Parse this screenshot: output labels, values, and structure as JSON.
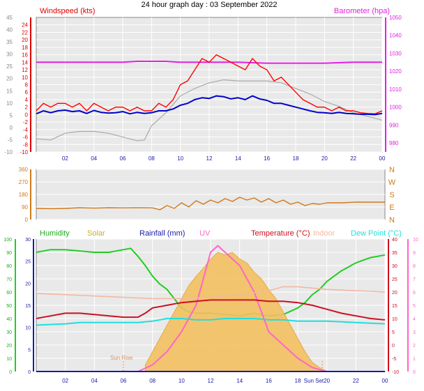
{
  "page_title": "24 hour graph day : 03 September 2022",
  "colors": {
    "wind": "#ff0000",
    "gust_avg": "#0000cc",
    "temp_trace": "#aaaaaa",
    "baro": "#e020e0",
    "dir": "#d07818",
    "humidity": "#22cc22",
    "solar": "#f2c060",
    "rain": "#1a1aaa",
    "uv": "#ff66cc",
    "temperature": "#cc1020",
    "indoor": "#f4b8a0",
    "dew": "#22dddd",
    "plot_bg": "#e9e9e9"
  },
  "chart_data": [
    {
      "type": "line",
      "id": "wind",
      "title": "Windspeed (kts)",
      "right_title": "Barometer (hpa)",
      "xticks": [
        "02",
        "04",
        "06",
        "08",
        "10",
        "12",
        "14",
        "16",
        "18",
        "20",
        "22",
        "00"
      ],
      "ylim": [
        -10,
        26
      ],
      "yticks_left": [
        "-10",
        "-8",
        "-6",
        "-4",
        "-2",
        "0",
        "2",
        "4",
        "6",
        "8",
        "10",
        "12",
        "14",
        "16",
        "18",
        "20",
        "22",
        "24"
      ],
      "yticks_outer": [
        "-10",
        "-5",
        "0",
        "5",
        "10",
        "15",
        "20",
        "25",
        "30",
        "35",
        "40",
        "45"
      ],
      "y2lim": [
        975,
        1050
      ],
      "yticks_right": [
        "980",
        "990",
        "1000",
        "1010",
        "1020",
        "1030",
        "1040",
        "1050"
      ],
      "grid": true,
      "series": [
        {
          "key": "baro",
          "x": [
            0,
            6,
            7,
            8,
            9,
            10,
            12,
            14,
            16,
            18,
            20,
            22,
            24
          ],
          "y": [
            1025,
            1025,
            1025.5,
            1025.5,
            1025.5,
            1025,
            1025,
            1025,
            1024.5,
            1024.5,
            1024.5,
            1025,
            1025
          ]
        },
        {
          "key": "temp_trace",
          "x": [
            0,
            1,
            2,
            3,
            4,
            5,
            6,
            7,
            7.5,
            8,
            9,
            10,
            11,
            12,
            13,
            14,
            15,
            16,
            17,
            18,
            19,
            20,
            21,
            22,
            23,
            24
          ],
          "y": [
            -6.5,
            -6.8,
            -5,
            -4.5,
            -4.5,
            -5,
            -6,
            -7,
            -6.8,
            -3,
            0.5,
            5,
            7,
            8.5,
            9.3,
            9.0,
            9.0,
            9.0,
            8.5,
            7.0,
            5.5,
            3.5,
            2.2,
            0.5,
            -0.5,
            -1.5
          ]
        },
        {
          "key": "wind",
          "x": [
            0,
            0.5,
            1,
            1.5,
            2,
            2.5,
            3,
            3.5,
            4,
            4.5,
            5,
            5.5,
            6,
            6.5,
            7,
            7.5,
            8,
            8.5,
            9,
            9.5,
            10,
            10.5,
            11,
            11.5,
            12,
            12.5,
            13,
            13.5,
            14,
            14.5,
            15,
            15.5,
            16,
            16.5,
            17,
            17.5,
            18,
            18.5,
            19,
            19.5,
            20,
            20.5,
            21,
            21.5,
            22,
            22.5,
            23,
            23.5,
            24
          ],
          "y": [
            1,
            3,
            2,
            3,
            3,
            2,
            3,
            1,
            3,
            2,
            1,
            2,
            2,
            1,
            2,
            1,
            1,
            3,
            2,
            4,
            8,
            9,
            12,
            15,
            14,
            16,
            15,
            14,
            13,
            12,
            15,
            13,
            12,
            9,
            10,
            8,
            6,
            4,
            3,
            2,
            2,
            1,
            2,
            1,
            1,
            0.5,
            0.3,
            0.2,
            1
          ]
        },
        {
          "key": "gust_avg",
          "x": [
            0,
            0.5,
            1,
            1.5,
            2,
            2.5,
            3,
            3.5,
            4,
            4.5,
            5,
            5.5,
            6,
            6.5,
            7,
            7.5,
            8,
            8.5,
            9,
            9.5,
            10,
            10.5,
            11,
            11.5,
            12,
            12.5,
            13,
            13.5,
            14,
            14.5,
            15,
            15.5,
            16,
            16.5,
            17,
            17.5,
            18,
            18.5,
            19,
            19.5,
            20,
            20.5,
            21,
            21.5,
            22,
            22.5,
            23,
            23.5,
            24
          ],
          "y": [
            0.2,
            1,
            0.5,
            1,
            1.2,
            0.8,
            1,
            0.3,
            1.1,
            0.6,
            0.4,
            0.5,
            0.8,
            0.2,
            0.6,
            0.3,
            0.5,
            1,
            1,
            1.5,
            2.5,
            3,
            4,
            4.5,
            4.3,
            5,
            4.8,
            4.2,
            4.5,
            4,
            5,
            4.2,
            3.8,
            3,
            3,
            2.5,
            2,
            1.5,
            1,
            0.6,
            0.5,
            0.3,
            0.6,
            0.3,
            0.2,
            0.1,
            0.1,
            0,
            0.3
          ]
        }
      ]
    },
    {
      "type": "line",
      "id": "direction",
      "ylim": [
        0,
        360
      ],
      "yticks_left": [
        "0",
        "90",
        "180",
        "270",
        "360"
      ],
      "yticks_right": [
        "N",
        "E",
        "S",
        "W",
        "N"
      ],
      "grid": true,
      "series": [
        {
          "key": "dir",
          "x": [
            0,
            1,
            2,
            3,
            4,
            5,
            6,
            7,
            8,
            8.5,
            9,
            9.5,
            10,
            10.5,
            11,
            11.5,
            12,
            12.5,
            13,
            13.5,
            14,
            14.5,
            15,
            15.5,
            16,
            16.5,
            17,
            17.5,
            18,
            18.5,
            19,
            19.5,
            20,
            21,
            22,
            23,
            24
          ],
          "y": [
            80,
            78,
            80,
            85,
            82,
            85,
            84,
            85,
            84,
            70,
            100,
            80,
            120,
            90,
            135,
            110,
            140,
            120,
            150,
            130,
            160,
            140,
            155,
            125,
            150,
            120,
            140,
            110,
            125,
            100,
            115,
            110,
            120,
            120,
            125,
            125,
            125
          ]
        }
      ]
    },
    {
      "type": "line",
      "id": "temperature",
      "labels": {
        "humidity": "Humidity",
        "solar": "Solar",
        "rain": "Rainfall (mm)",
        "uv": "UV",
        "temperature": "Temperature (°C)",
        "indoor": "Indoor",
        "dew": "Dew Point (°C)"
      },
      "xticks": [
        "02",
        "04",
        "06",
        "08",
        "10",
        "12",
        "14",
        "16",
        "18",
        "Sun Set",
        "20",
        "22",
        "00"
      ],
      "ylim": [
        -10,
        40
      ],
      "yticks_humidity": [
        "0",
        "10",
        "20",
        "30",
        "40",
        "50",
        "60",
        "70",
        "80",
        "90",
        "100"
      ],
      "yticks_rain": [
        "0",
        "5",
        "10",
        "15",
        "20",
        "25",
        "30"
      ],
      "yticks_temp": [
        "-10",
        "-5",
        "0",
        "5",
        "10",
        "15",
        "20",
        "25",
        "30",
        "35",
        "40"
      ],
      "yticks_uv": [
        "0",
        "1",
        "2",
        "3",
        "4",
        "5",
        "6",
        "7",
        "8",
        "9",
        "10"
      ],
      "annotations": [
        "Sun Rise",
        "Sun Set"
      ],
      "grid": true,
      "series": [
        {
          "key": "humidity",
          "unit": "%",
          "x": [
            0,
            1,
            2,
            3,
            4,
            5,
            6,
            6.5,
            7,
            7.5,
            8,
            8.5,
            9,
            9.5,
            10,
            10.5,
            11,
            11.5,
            12,
            13,
            14,
            15,
            16,
            17,
            18,
            18.5,
            19,
            19.5,
            20,
            21,
            22,
            23,
            24
          ],
          "y": [
            90,
            92,
            92,
            91,
            90,
            90,
            92,
            93,
            87,
            80,
            72,
            66,
            62,
            55,
            48,
            45,
            44,
            44,
            44,
            43,
            42,
            44,
            42,
            43,
            48,
            52,
            58,
            62,
            68,
            76,
            82,
            86,
            88
          ]
        },
        {
          "key": "solar",
          "x": [
            7.5,
            8,
            8.5,
            9,
            9.5,
            10,
            10.5,
            11,
            11.5,
            12,
            12.5,
            13,
            13.5,
            14,
            14.5,
            15,
            15.5,
            16,
            16.5,
            17,
            17.5,
            18,
            18.5,
            19,
            19.5,
            20
          ],
          "y": [
            0.05,
            0.15,
            0.25,
            0.35,
            0.45,
            0.55,
            0.65,
            0.72,
            0.78,
            0.85,
            0.9,
            0.88,
            0.9,
            0.85,
            0.82,
            0.75,
            0.7,
            0.62,
            0.55,
            0.45,
            0.35,
            0.25,
            0.15,
            0.07,
            0.03,
            0
          ]
        },
        {
          "key": "uv",
          "x": [
            7,
            8,
            9,
            10,
            11,
            11.5,
            12,
            12.5,
            13,
            13.5,
            14,
            14.5,
            15,
            15.5,
            16,
            17,
            18,
            19,
            20
          ],
          "y": [
            0,
            0.5,
            1.5,
            3,
            5,
            7,
            9,
            9.5,
            9,
            8.5,
            8,
            7,
            6,
            4.5,
            3,
            2,
            1,
            0.3,
            0
          ]
        },
        {
          "key": "temperature",
          "x": [
            0,
            1,
            2,
            3,
            4,
            5,
            6,
            7,
            7.5,
            8,
            9,
            10,
            11,
            12,
            13,
            14,
            15,
            16,
            17,
            18,
            19,
            20,
            21,
            22,
            23,
            24
          ],
          "y": [
            10,
            11,
            12,
            12,
            11.5,
            11,
            10.5,
            10.5,
            12,
            14,
            15,
            16,
            16.5,
            17,
            17,
            17,
            17,
            16.5,
            16.5,
            16,
            15,
            13.5,
            12,
            11,
            10,
            9.5
          ]
        },
        {
          "key": "indoor",
          "x": [
            0,
            2,
            4,
            6,
            8,
            10,
            12,
            14,
            16,
            17,
            18,
            19,
            20,
            22,
            24
          ],
          "y": [
            19.5,
            19,
            18.5,
            18,
            17.5,
            17.5,
            18,
            19,
            20.5,
            22,
            22,
            21.5,
            21,
            20.5,
            20
          ]
        },
        {
          "key": "dew",
          "x": [
            0,
            2,
            3,
            4,
            6,
            7,
            8,
            9,
            10,
            11,
            12,
            13,
            14,
            15,
            16,
            17,
            18,
            20,
            22,
            24
          ],
          "y": [
            7.5,
            8,
            8.5,
            8.5,
            8.5,
            8.5,
            9,
            10,
            10,
            9.5,
            9.5,
            10,
            10,
            10,
            9.5,
            9.5,
            9,
            9,
            8.5,
            8
          ]
        },
        {
          "key": "rain",
          "x": [
            0,
            24
          ],
          "y": [
            0,
            0
          ]
        }
      ]
    }
  ]
}
